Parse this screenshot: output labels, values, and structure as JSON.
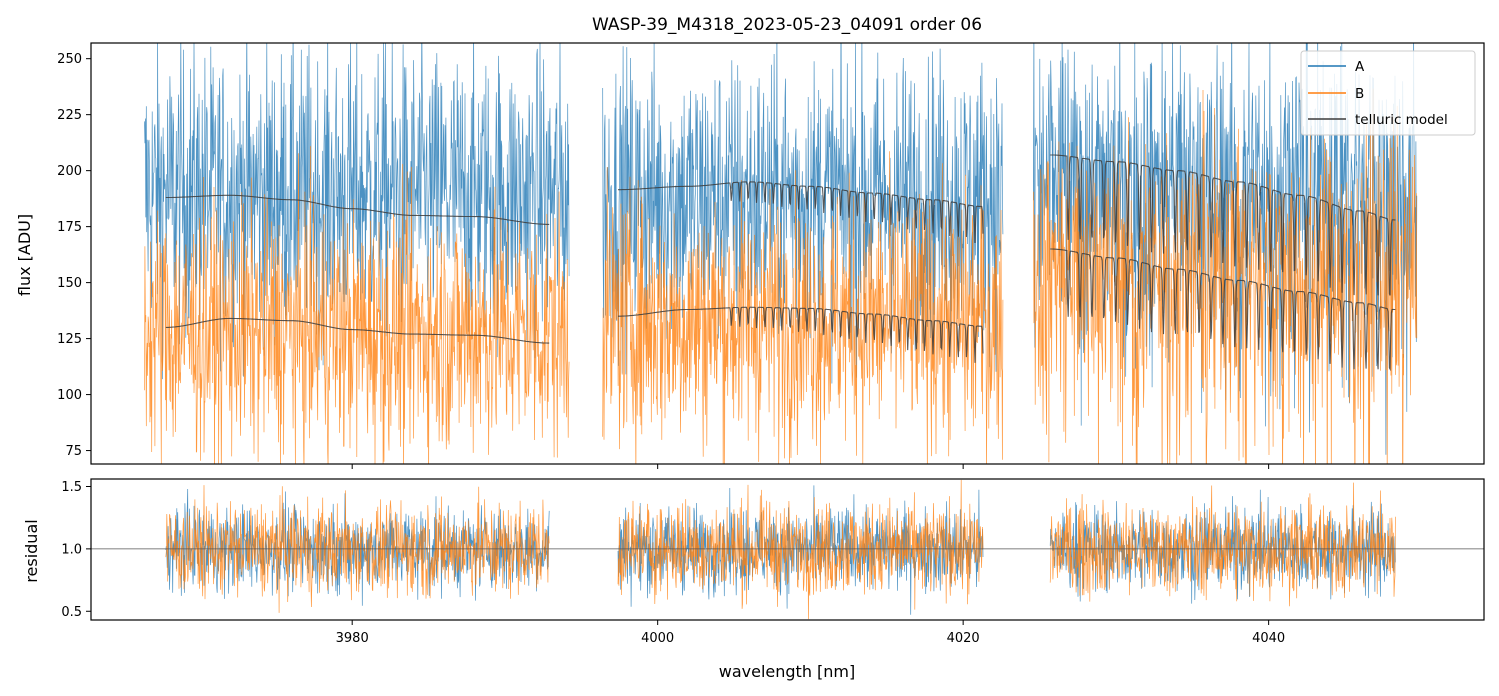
{
  "chart_data": {
    "type": "line",
    "title": "WASP-39_M4318_2023-05-23_04091  order 06",
    "xlabel": "wavelength [nm]",
    "xlim": [
      3962.9,
      4054.1
    ],
    "xticks": [
      3980,
      4000,
      4020,
      4040
    ],
    "xtick_labels": [
      "3980",
      "4000",
      "4020",
      "4040"
    ],
    "top_panel": {
      "ylabel": "flux [ADU]",
      "ylim": [
        69,
        257
      ],
      "yticks": [
        75,
        100,
        125,
        150,
        175,
        200,
        225,
        250
      ],
      "ytick_labels": [
        "75",
        "100",
        "125",
        "150",
        "175",
        "200",
        "225",
        "250"
      ],
      "segments": [
        {
          "x_start": 3966.4,
          "x_end": 3994.2
        },
        {
          "x_start": 3996.4,
          "x_end": 4022.6
        },
        {
          "x_start": 4024.6,
          "x_end": 4049.7
        }
      ],
      "series": [
        {
          "name": "A",
          "color": "#1f77b4",
          "levels": [
            190,
            188,
            198
          ],
          "noise": 34
        },
        {
          "name": "B",
          "color": "#ff7f0e",
          "levels": [
            128,
            133,
            160
          ],
          "noise": 30
        }
      ],
      "telluric_model": {
        "name": "telluric model",
        "color": "#3c3c3c",
        "segments": [
          {
            "x_start": 3967.8,
            "x_end": 3992.9,
            "A": {
              "x": [
                3967.8,
                3972,
                3976,
                3980,
                3984,
                3988,
                3992.9
              ],
              "y": [
                188,
                189,
                187,
                183,
                180,
                179.5,
                176
              ]
            },
            "B": {
              "x": [
                3967.8,
                3972,
                3976,
                3980,
                3984,
                3988,
                3992.9
              ],
              "y": [
                130,
                134,
                133,
                129,
                127,
                126.5,
                123
              ]
            }
          },
          {
            "x_start": 3997.4,
            "x_end": 4021.3,
            "A": {
              "x": [
                3997.4,
                4002,
                4006,
                4010,
                4014,
                4018,
                4021.3
              ],
              "y": [
                191.5,
                193,
                195,
                193,
                190,
                187,
                184
              ]
            },
            "B": {
              "x": [
                3997.4,
                4002,
                4006,
                4010,
                4014,
                4018,
                4021.3
              ],
              "y": [
                135,
                138,
                139,
                138.5,
                136,
                133,
                130.5
              ]
            }
          },
          {
            "x_start": 4025.7,
            "x_end": 4048.3,
            "A": {
              "x": [
                4025.7,
                4030,
                4034,
                4038,
                4042,
                4046,
                4048.3
              ],
              "y": [
                207,
                204,
                200,
                195,
                189,
                182,
                178
              ]
            },
            "B": {
              "x": [
                4025.7,
                4030,
                4034,
                4038,
                4042,
                4046,
                4048.3
              ],
              "y": [
                165,
                161,
                156,
                151,
                146,
                141,
                138
              ]
            }
          }
        ]
      },
      "legend": {
        "placement": "top-right",
        "entries": [
          {
            "label": "A",
            "color": "#1f77b4"
          },
          {
            "label": "B",
            "color": "#ff7f0e"
          },
          {
            "label": "telluric model",
            "color": "#3c3c3c"
          }
        ]
      }
    },
    "bottom_panel": {
      "ylabel": "residual",
      "ylim": [
        0.43,
        1.56
      ],
      "yticks": [
        0.5,
        1.0,
        1.5
      ],
      "ytick_labels": [
        "0.5",
        "1.0",
        "1.5"
      ],
      "reference_line": 1.0,
      "segments": [
        {
          "x_start": 3967.8,
          "x_end": 3992.9
        },
        {
          "x_start": 3997.4,
          "x_end": 4021.3
        },
        {
          "x_start": 4025.7,
          "x_end": 4048.3
        }
      ],
      "series": [
        {
          "name": "A",
          "color": "#1f77b4",
          "center": 1.0,
          "noise": 0.18
        },
        {
          "name": "B",
          "color": "#ff7f0e",
          "center": 1.0,
          "noise": 0.2
        }
      ]
    }
  }
}
